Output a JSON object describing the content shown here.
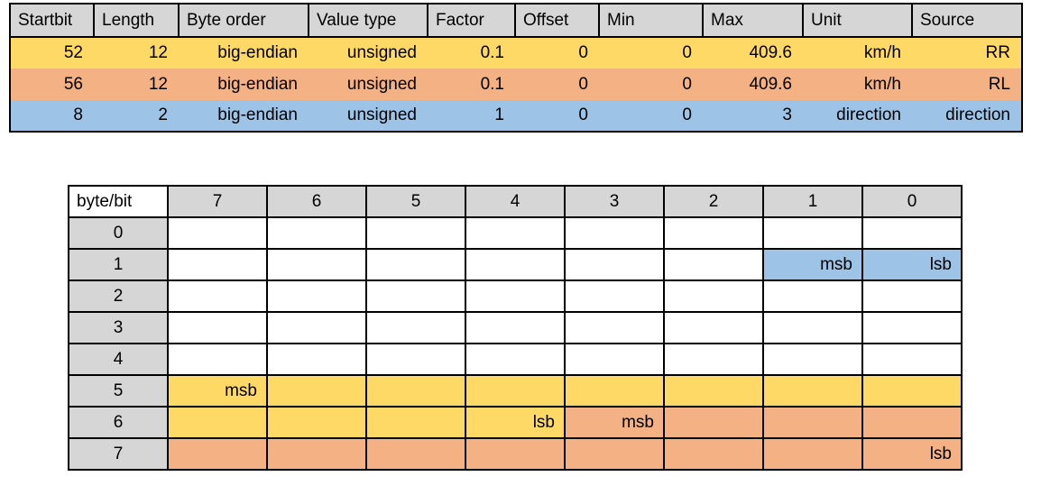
{
  "palette": {
    "yellow": "#FFD966",
    "orange": "#F4B183",
    "blue": "#9DC3E6",
    "header_gray": "#D6D6D6",
    "grid_line": "#000000"
  },
  "signal_table": {
    "headers": [
      "Startbit",
      "Length",
      "Byte order",
      "Value type",
      "Factor",
      "Offset",
      "Min",
      "Max",
      "Unit",
      "Source"
    ],
    "rows": [
      {
        "name": "rr",
        "color": "yellow",
        "cells": [
          "52",
          "12",
          "big-endian",
          "unsigned",
          "0.1",
          "0",
          "0",
          "409.6",
          "km/h",
          "RR"
        ]
      },
      {
        "name": "rl",
        "color": "orange",
        "cells": [
          "56",
          "12",
          "big-endian",
          "unsigned",
          "0.1",
          "0",
          "0",
          "409.6",
          "km/h",
          "RL"
        ]
      },
      {
        "name": "direction",
        "color": "blue",
        "cells": [
          "8",
          "2",
          "big-endian",
          "unsigned",
          "1",
          "0",
          "0",
          "3",
          "direction",
          "direction"
        ]
      }
    ]
  },
  "bit_matrix": {
    "corner_label": "byte/bit",
    "bit_headers": [
      "7",
      "6",
      "5",
      "4",
      "3",
      "2",
      "1",
      "0"
    ],
    "byte_rows": [
      {
        "byte": "0",
        "cells": [
          {},
          {},
          {},
          {},
          {},
          {},
          {},
          {}
        ]
      },
      {
        "byte": "1",
        "cells": [
          {},
          {},
          {},
          {},
          {},
          {},
          {
            "color": "blue",
            "label": "msb"
          },
          {
            "color": "blue",
            "label": "lsb"
          }
        ]
      },
      {
        "byte": "2",
        "cells": [
          {},
          {},
          {},
          {},
          {},
          {},
          {},
          {}
        ]
      },
      {
        "byte": "3",
        "cells": [
          {},
          {},
          {},
          {},
          {},
          {},
          {},
          {}
        ]
      },
      {
        "byte": "4",
        "cells": [
          {},
          {},
          {},
          {},
          {},
          {},
          {},
          {}
        ]
      },
      {
        "byte": "5",
        "cells": [
          {
            "color": "yellow",
            "label": "msb"
          },
          {
            "color": "yellow"
          },
          {
            "color": "yellow"
          },
          {
            "color": "yellow"
          },
          {
            "color": "yellow"
          },
          {
            "color": "yellow"
          },
          {
            "color": "yellow"
          },
          {
            "color": "yellow"
          }
        ]
      },
      {
        "byte": "6",
        "cells": [
          {
            "color": "yellow"
          },
          {
            "color": "yellow"
          },
          {
            "color": "yellow"
          },
          {
            "color": "yellow",
            "label": "lsb"
          },
          {
            "color": "orange",
            "label": "msb"
          },
          {
            "color": "orange"
          },
          {
            "color": "orange"
          },
          {
            "color": "orange"
          }
        ]
      },
      {
        "byte": "7",
        "cells": [
          {
            "color": "orange"
          },
          {
            "color": "orange"
          },
          {
            "color": "orange"
          },
          {
            "color": "orange"
          },
          {
            "color": "orange"
          },
          {
            "color": "orange"
          },
          {
            "color": "orange"
          },
          {
            "color": "orange",
            "label": "lsb"
          }
        ]
      }
    ]
  }
}
